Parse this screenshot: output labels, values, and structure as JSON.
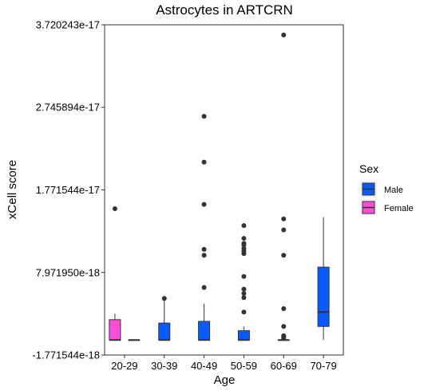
{
  "chart_data": {
    "type": "boxplot",
    "title": "Astrocytes in ARTCRN",
    "xlabel": "Age",
    "ylabel": "xCell score",
    "ylim": [
      -1.771544e-18,
      3.720243e-17
    ],
    "yticks": [
      -1.771544e-18,
      7.97195e-18,
      1.771544e-17,
      2.745894e-17,
      3.720243e-17
    ],
    "ytick_labels": [
      "-1.771544e-18",
      "7.971950e-18",
      "1.771544e-17",
      "2.745894e-17",
      "3.720243e-17"
    ],
    "categories": [
      "20-29",
      "30-39",
      "40-49",
      "50-59",
      "60-69",
      "70-79"
    ],
    "legend": {
      "title": "Sex",
      "position": "right"
    },
    "grid": false,
    "series": [
      {
        "name": "Female",
        "color": "#FF4FD8",
        "boxes": [
          {
            "category": "20-29",
            "whisker_low": 0,
            "q1": 0,
            "median": 0,
            "q3": 2.4e-18,
            "whisker_high": 3.1e-18,
            "outliers": [
              1.55e-17
            ]
          }
        ]
      },
      {
        "name": "Male",
        "color": "#0A5BFF",
        "boxes": [
          {
            "category": "20-29",
            "whisker_low": 0,
            "q1": 0,
            "median": 0,
            "q3": 0,
            "whisker_high": 0,
            "outliers": []
          },
          {
            "category": "30-39",
            "whisker_low": 0,
            "q1": 0,
            "median": 0,
            "q3": 2e-18,
            "whisker_high": 5.1e-18,
            "outliers": [
              4.9e-18
            ]
          },
          {
            "category": "40-49",
            "whisker_low": 0,
            "q1": 0,
            "median": 0,
            "q3": 2.2e-18,
            "whisker_high": 4.3e-18,
            "outliers": [
              6.2e-18,
              1e-17,
              1.07e-17,
              1.6e-17,
              2.1e-17,
              2.64e-17
            ]
          },
          {
            "category": "50-59",
            "whisker_low": 0,
            "q1": 0,
            "median": 0,
            "q3": 1.1e-18,
            "whisker_high": 1.6e-18,
            "outliers": [
              3.3e-18,
              5e-18,
              5.5e-18,
              6e-18,
              7.5e-18,
              1.02e-17,
              1.05e-17,
              1.08e-17,
              1.12e-17,
              1.14e-17,
              1.2e-17,
              1.35e-17
            ]
          },
          {
            "category": "60-69",
            "whisker_low": 0,
            "q1": 0,
            "median": 0,
            "q3": 0,
            "whisker_high": 0,
            "outliers": [
              2e-19,
              4e-19,
              5e-19,
              1.6e-18,
              3.7e-18,
              1e-17,
              1.3e-17,
              1.43e-17,
              3.6e-17
            ]
          },
          {
            "category": "70-79",
            "whisker_low": 0,
            "q1": 1.6e-18,
            "median": 3.3e-18,
            "q3": 8.6e-18,
            "whisker_high": 1.45e-17,
            "outliers": []
          }
        ]
      }
    ]
  }
}
